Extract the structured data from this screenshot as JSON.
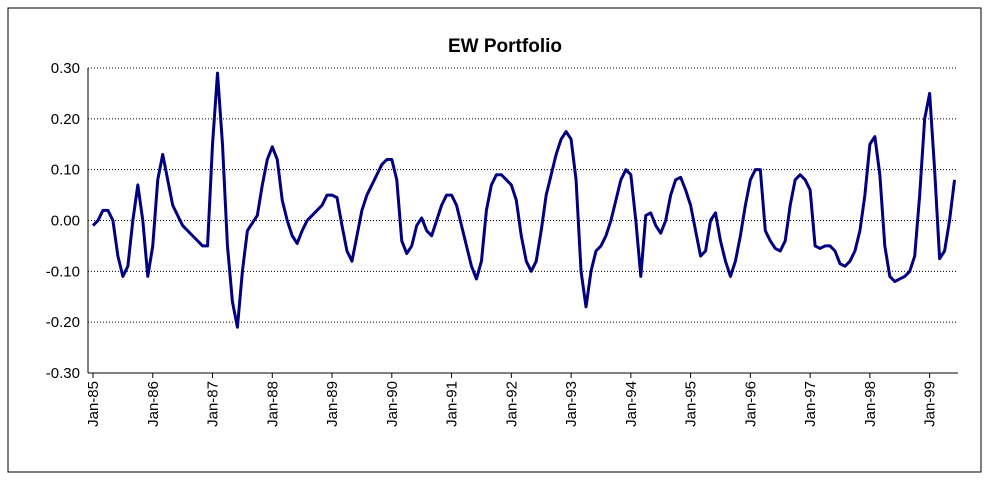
{
  "chart_data": {
    "type": "line",
    "title": "EW Portfolio",
    "categories": [
      "Jan-85",
      null,
      null,
      null,
      null,
      null,
      null,
      null,
      null,
      null,
      null,
      null,
      "Jan-86",
      null,
      null,
      null,
      null,
      null,
      null,
      null,
      null,
      null,
      null,
      null,
      "Jan-87",
      null,
      null,
      null,
      null,
      null,
      null,
      null,
      null,
      null,
      null,
      null,
      "Jan-88",
      null,
      null,
      null,
      null,
      null,
      null,
      null,
      null,
      null,
      null,
      null,
      "Jan-89",
      null,
      null,
      null,
      null,
      null,
      null,
      null,
      null,
      null,
      null,
      null,
      "Jan-90",
      null,
      null,
      null,
      null,
      null,
      null,
      null,
      null,
      null,
      null,
      null,
      "Jan-91",
      null,
      null,
      null,
      null,
      null,
      null,
      null,
      null,
      null,
      null,
      null,
      "Jan-92",
      null,
      null,
      null,
      null,
      null,
      null,
      null,
      null,
      null,
      null,
      null,
      "Jan-93",
      null,
      null,
      null,
      null,
      null,
      null,
      null,
      null,
      null,
      null,
      null,
      "Jan-94",
      null,
      null,
      null,
      null,
      null,
      null,
      null,
      null,
      null,
      null,
      null,
      "Jan-95",
      null,
      null,
      null,
      null,
      null,
      null,
      null,
      null,
      null,
      null,
      null,
      "Jan-96",
      null,
      null,
      null,
      null,
      null,
      null,
      null,
      null,
      null,
      null,
      null,
      "Jan-97",
      null,
      null,
      null,
      null,
      null,
      null,
      null,
      null,
      null,
      null,
      null,
      "Jan-98",
      null,
      null,
      null,
      null,
      null,
      null,
      null,
      null,
      null,
      null,
      null,
      "Jan-99",
      null,
      null,
      null,
      null,
      null
    ],
    "series": [
      {
        "name": "EW Portfolio",
        "color": "#000080",
        "values": [
          -0.01,
          0.0,
          0.02,
          0.02,
          0.0,
          -0.07,
          -0.11,
          -0.09,
          0.0,
          0.07,
          0.0,
          -0.11,
          -0.05,
          0.08,
          0.13,
          0.08,
          0.03,
          0.01,
          -0.01,
          -0.02,
          -0.03,
          -0.04,
          -0.05,
          -0.05,
          0.15,
          0.29,
          0.15,
          -0.05,
          -0.16,
          -0.21,
          -0.1,
          -0.02,
          -0.005,
          0.01,
          0.07,
          0.12,
          0.145,
          0.12,
          0.04,
          0.0,
          -0.03,
          -0.045,
          -0.02,
          0.0,
          0.01,
          0.02,
          0.03,
          0.05,
          0.05,
          0.045,
          -0.01,
          -0.06,
          -0.08,
          -0.03,
          0.02,
          0.05,
          0.07,
          0.09,
          0.11,
          0.12,
          0.12,
          0.08,
          -0.04,
          -0.065,
          -0.05,
          -0.01,
          0.005,
          -0.02,
          -0.03,
          0.0,
          0.03,
          0.05,
          0.05,
          0.03,
          -0.01,
          -0.05,
          -0.09,
          -0.115,
          -0.08,
          0.02,
          0.07,
          0.09,
          0.09,
          0.08,
          0.07,
          0.04,
          -0.03,
          -0.08,
          -0.1,
          -0.08,
          -0.02,
          0.05,
          0.09,
          0.13,
          0.16,
          0.175,
          0.16,
          0.08,
          -0.1,
          -0.17,
          -0.1,
          -0.06,
          -0.05,
          -0.03,
          0.0,
          0.04,
          0.08,
          0.1,
          0.09,
          0.0,
          -0.11,
          0.01,
          0.015,
          -0.01,
          -0.025,
          0.0,
          0.05,
          0.08,
          0.085,
          0.06,
          0.03,
          -0.02,
          -0.07,
          -0.06,
          0.0,
          0.015,
          -0.04,
          -0.08,
          -0.11,
          -0.08,
          -0.03,
          0.03,
          0.08,
          0.1,
          0.1,
          -0.02,
          -0.04,
          -0.055,
          -0.06,
          -0.04,
          0.03,
          0.08,
          0.09,
          0.08,
          0.06,
          -0.05,
          -0.055,
          -0.05,
          -0.05,
          -0.06,
          -0.085,
          -0.09,
          -0.08,
          -0.06,
          -0.02,
          0.05,
          0.15,
          0.165,
          0.09,
          -0.05,
          -0.11,
          -0.12,
          -0.115,
          -0.11,
          -0.1,
          -0.07,
          0.05,
          0.2,
          0.25,
          0.1,
          -0.075,
          -0.06,
          0.0,
          0.08
        ]
      }
    ],
    "ylim": [
      -0.3,
      0.3
    ],
    "yticks": [
      {
        "value": -0.3,
        "label": "-0.30"
      },
      {
        "value": -0.2,
        "label": "-0.20"
      },
      {
        "value": -0.1,
        "label": "-0.10"
      },
      {
        "value": 0,
        "label": "0.00"
      },
      {
        "value": 0.1,
        "label": "0.10"
      },
      {
        "value": 0.2,
        "label": "0.20"
      },
      {
        "value": 0.3,
        "label": "0.30"
      }
    ],
    "grid": true
  }
}
